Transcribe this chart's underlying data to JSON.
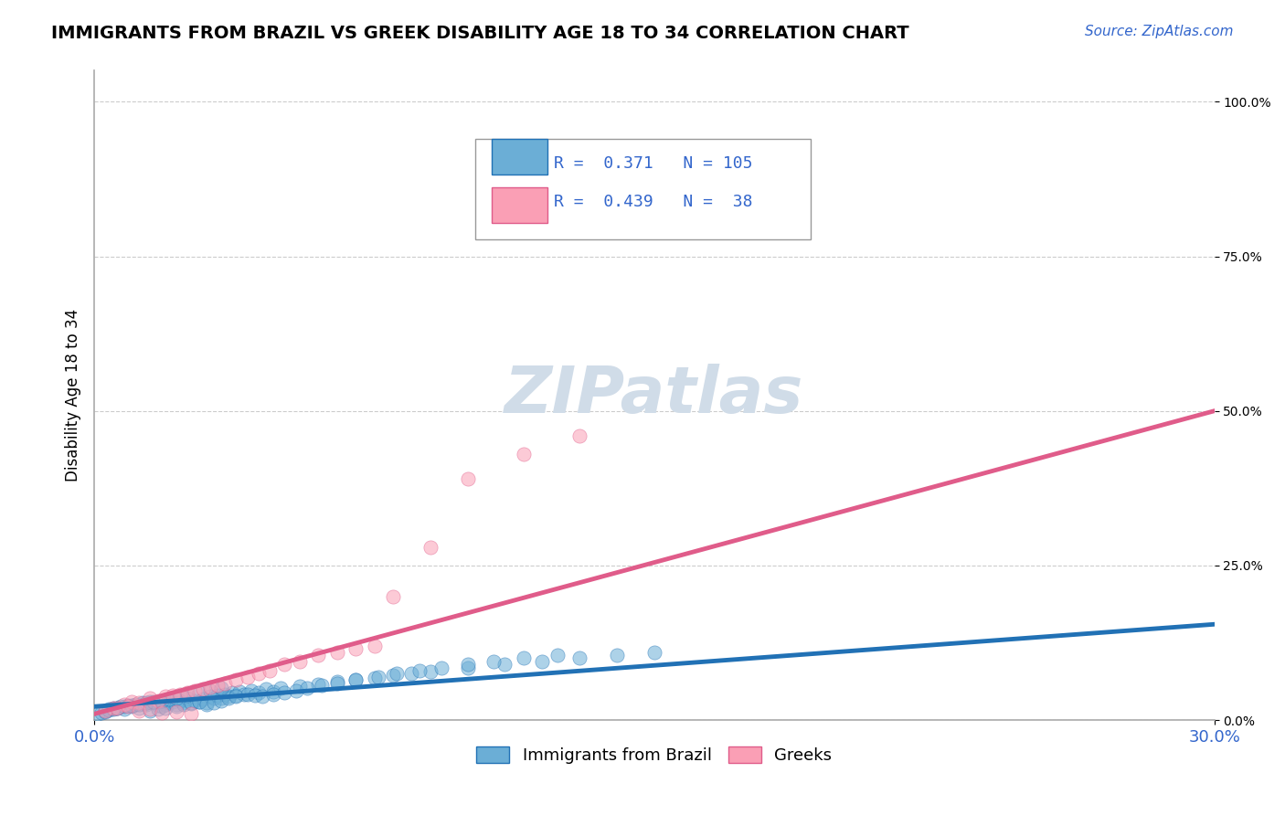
{
  "title": "IMMIGRANTS FROM BRAZIL VS GREEK DISABILITY AGE 18 TO 34 CORRELATION CHART",
  "source_text": "Source: ZipAtlas.com",
  "xlabel": "",
  "ylabel": "Disability Age 18 to 34",
  "xlim": [
    0.0,
    0.3
  ],
  "ylim": [
    0.0,
    1.05
  ],
  "x_tick_labels": [
    "0.0%",
    "30.0%"
  ],
  "y_tick_labels": [
    "0.0%",
    "25.0%",
    "50.0%",
    "75.0%",
    "100.0%"
  ],
  "y_tick_values": [
    0.0,
    0.25,
    0.5,
    0.75,
    1.0
  ],
  "legend_box": {
    "r1": "0.371",
    "n1": "105",
    "r2": "0.439",
    "n2": "38"
  },
  "blue_color": "#6baed6",
  "pink_color": "#fa9fb5",
  "blue_line_color": "#2171b5",
  "pink_line_color": "#e05c8a",
  "watermark_text": "ZIPatlas",
  "watermark_color": "#d0dce8",
  "grid_color": "#cccccc",
  "brazil_scatter": {
    "x": [
      0.005,
      0.008,
      0.01,
      0.012,
      0.014,
      0.015,
      0.016,
      0.017,
      0.018,
      0.019,
      0.02,
      0.021,
      0.022,
      0.023,
      0.024,
      0.025,
      0.026,
      0.027,
      0.028,
      0.029,
      0.03,
      0.031,
      0.032,
      0.033,
      0.034,
      0.035,
      0.036,
      0.037,
      0.038,
      0.039,
      0.04,
      0.042,
      0.044,
      0.046,
      0.048,
      0.05,
      0.055,
      0.06,
      0.065,
      0.07,
      0.075,
      0.08,
      0.085,
      0.09,
      0.1,
      0.11,
      0.12,
      0.13,
      0.14,
      0.15,
      0.003,
      0.004,
      0.006,
      0.007,
      0.009,
      0.011,
      0.013,
      0.015,
      0.017,
      0.019,
      0.022,
      0.024,
      0.026,
      0.028,
      0.03,
      0.032,
      0.034,
      0.036,
      0.038,
      0.041,
      0.043,
      0.045,
      0.048,
      0.051,
      0.054,
      0.057,
      0.061,
      0.065,
      0.07,
      0.076,
      0.081,
      0.087,
      0.093,
      0.1,
      0.107,
      0.115,
      0.124,
      0.001,
      0.002,
      0.003,
      0.004,
      0.005,
      0.006,
      0.008,
      0.01,
      0.012,
      0.014,
      0.016,
      0.018,
      0.02,
      0.022,
      0.025,
      0.028,
      0.031,
      0.034
    ],
    "y": [
      0.02,
      0.018,
      0.022,
      0.019,
      0.025,
      0.03,
      0.028,
      0.024,
      0.022,
      0.026,
      0.028,
      0.03,
      0.025,
      0.032,
      0.029,
      0.035,
      0.027,
      0.032,
      0.03,
      0.034,
      0.028,
      0.038,
      0.035,
      0.04,
      0.036,
      0.042,
      0.038,
      0.044,
      0.04,
      0.046,
      0.042,
      0.048,
      0.044,
      0.05,
      0.046,
      0.052,
      0.055,
      0.058,
      0.062,
      0.065,
      0.068,
      0.072,
      0.075,
      0.078,
      0.085,
      0.09,
      0.095,
      0.1,
      0.105,
      0.11,
      0.015,
      0.018,
      0.02,
      0.022,
      0.024,
      0.026,
      0.028,
      0.015,
      0.018,
      0.02,
      0.022,
      0.025,
      0.028,
      0.03,
      0.025,
      0.028,
      0.032,
      0.035,
      0.038,
      0.042,
      0.04,
      0.038,
      0.042,
      0.045,
      0.048,
      0.052,
      0.056,
      0.06,
      0.065,
      0.07,
      0.075,
      0.08,
      0.085,
      0.09,
      0.095,
      0.1,
      0.105,
      0.01,
      0.012,
      0.014,
      0.016,
      0.018,
      0.02,
      0.022,
      0.024,
      0.026,
      0.028,
      0.03,
      0.032,
      0.034,
      0.036,
      0.04,
      0.044,
      0.048,
      0.052
    ]
  },
  "greek_scatter": {
    "x": [
      0.005,
      0.008,
      0.01,
      0.012,
      0.015,
      0.017,
      0.019,
      0.021,
      0.023,
      0.025,
      0.027,
      0.029,
      0.031,
      0.033,
      0.035,
      0.038,
      0.041,
      0.044,
      0.047,
      0.051,
      0.055,
      0.06,
      0.065,
      0.07,
      0.075,
      0.08,
      0.09,
      0.1,
      0.115,
      0.13,
      0.003,
      0.006,
      0.009,
      0.012,
      0.015,
      0.018,
      0.022,
      0.026
    ],
    "y": [
      0.02,
      0.025,
      0.03,
      0.028,
      0.035,
      0.032,
      0.038,
      0.04,
      0.042,
      0.045,
      0.048,
      0.05,
      0.053,
      0.056,
      0.06,
      0.065,
      0.07,
      0.075,
      0.08,
      0.09,
      0.095,
      0.105,
      0.11,
      0.115,
      0.12,
      0.2,
      0.28,
      0.39,
      0.43,
      0.46,
      0.015,
      0.02,
      0.022,
      0.015,
      0.018,
      0.012,
      0.014,
      0.01
    ]
  },
  "brazil_trendline": {
    "x": [
      0.0,
      0.3
    ],
    "y": [
      0.022,
      0.155
    ]
  },
  "greek_trendline": {
    "x": [
      0.0,
      0.3
    ],
    "y": [
      0.01,
      0.5
    ]
  }
}
